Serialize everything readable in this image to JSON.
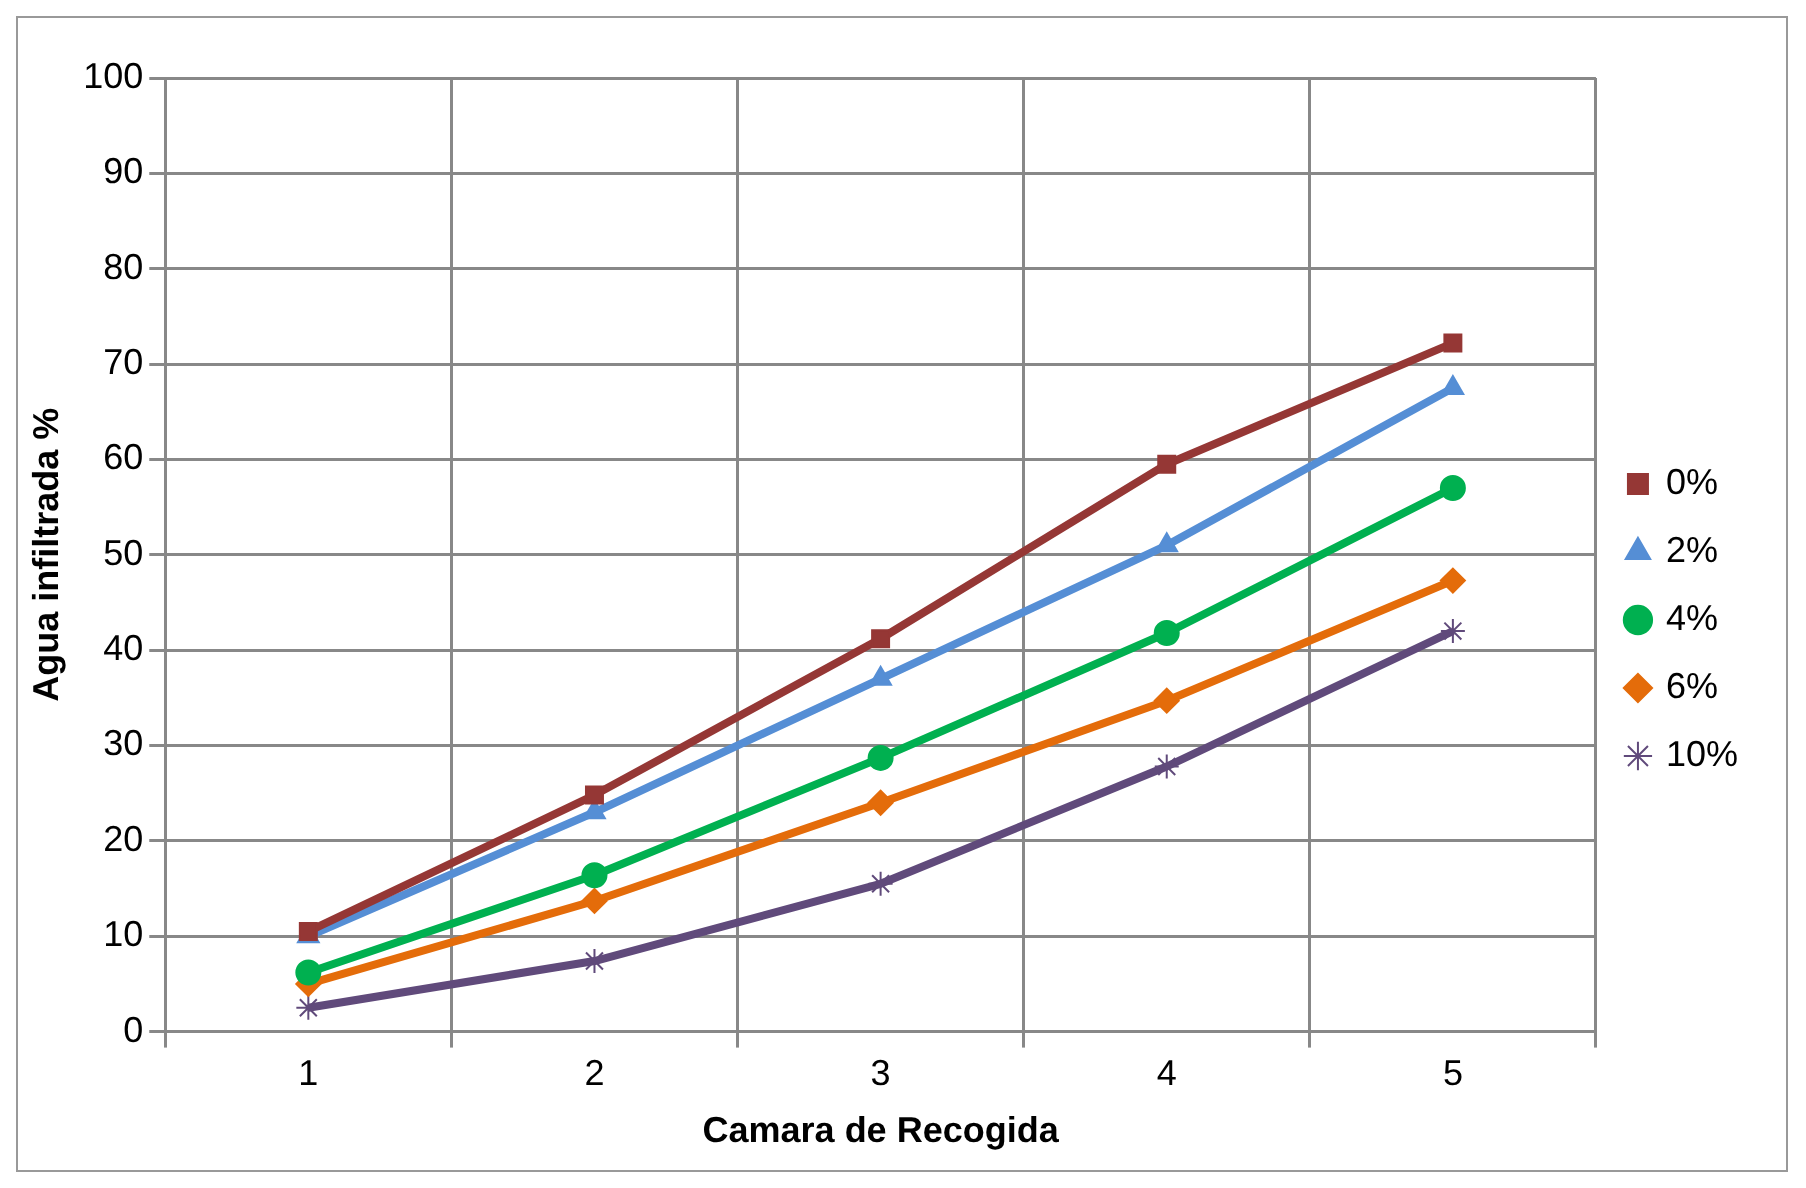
{
  "chart_data": {
    "type": "line",
    "xlabel": "Camara de Recogida",
    "ylabel": "Agua infiltrada %",
    "categories": [
      "1",
      "2",
      "3",
      "4",
      "5"
    ],
    "ylim": [
      0,
      100
    ],
    "yticks": [
      0,
      10,
      20,
      30,
      40,
      50,
      60,
      70,
      80,
      90,
      100
    ],
    "grid": true,
    "legend": "right",
    "line_style": "solid",
    "series": [
      {
        "name": "0%",
        "color": "#953735",
        "marker": "square",
        "values": [
          10.5,
          24.8,
          41.2,
          59.5,
          72.2
        ]
      },
      {
        "name": "2%",
        "color": "#558ed5",
        "marker": "triangle",
        "values": [
          10,
          23,
          37,
          51,
          67.5
        ]
      },
      {
        "name": "4%",
        "color": "#00b050",
        "marker": "circle",
        "values": [
          6.2,
          16.4,
          28.7,
          41.8,
          57
        ]
      },
      {
        "name": "6%",
        "color": "#e46c0a",
        "marker": "diamond",
        "values": [
          5,
          13.7,
          24,
          34.7,
          47.3
        ]
      },
      {
        "name": "10%",
        "color": "#604a7b",
        "marker": "cross",
        "values": [
          2.5,
          7.4,
          15.5,
          27.8,
          42
        ]
      }
    ]
  }
}
